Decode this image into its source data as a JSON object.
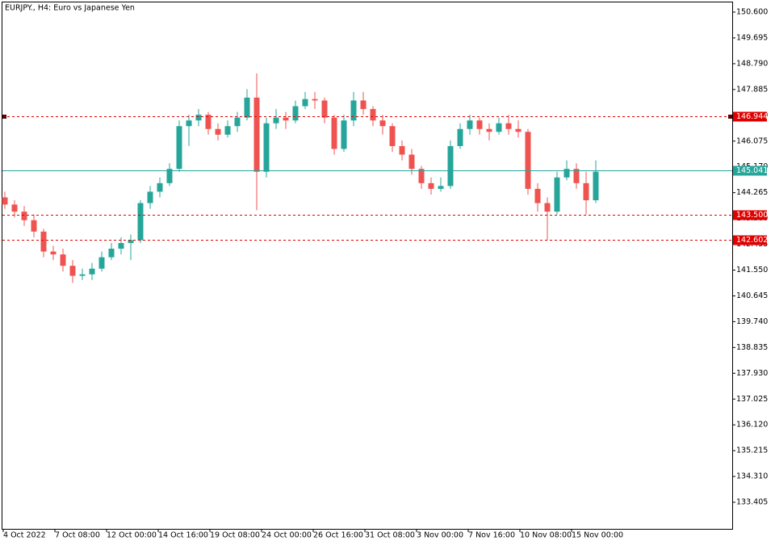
{
  "chart_data": {
    "type": "candlestick",
    "title": "EURJPY., H4:  Euro vs Japanese Yen",
    "up_color": "#26a69a",
    "down_color": "#ef5350",
    "ylim": [
      132.472,
      150.94
    ],
    "yticks": [
      {
        "value": 150.6,
        "label": "150.600"
      },
      149.695,
      {
        "value": 148.79,
        "label": "148.790"
      },
      147.885,
      {
        "value": 146.98,
        "label": "146.980"
      },
      146.075,
      {
        "value": 145.17,
        "label": "145.170"
      },
      144.265,
      {
        "value": 143.36,
        "label": "143.360"
      },
      142.455,
      {
        "value": 141.55,
        "label": "141.550"
      },
      140.645,
      {
        "value": 139.74,
        "label": "139.740"
      },
      138.835,
      {
        "value": 137.93,
        "label": "137.930"
      },
      137.025,
      {
        "value": 136.12,
        "label": "136.120"
      },
      135.215,
      {
        "value": 134.31,
        "label": "134.310"
      },
      133.405
    ],
    "x_tick_labels": [
      "4 Oct 2022",
      "7 Oct 08:00",
      "12 Oct 00:00",
      "14 Oct 16:00",
      "19 Oct 08:00",
      "24 Oct 00:00",
      "26 Oct 16:00",
      "31 Oct 08:00",
      "3 Nov 00:00",
      "7 Nov 16:00",
      "10 Nov 08:00",
      "15 Nov 00:00"
    ],
    "levels": [
      {
        "value": 146.944,
        "color": "#e00000",
        "style": "dashed"
      },
      {
        "value": 145.041,
        "color": "#26a69a",
        "style": "solid"
      },
      {
        "value": 143.5,
        "label": "143.500",
        "color": "#e00000",
        "style": "dashed"
      },
      {
        "value": 142.602,
        "color": "#e00000",
        "style": "dashed"
      }
    ],
    "open": [
      144.1,
      143.85,
      143.6,
      143.3,
      142.9,
      142.2,
      142.1,
      141.7,
      141.35,
      141.4,
      141.6,
      142.0,
      142.3,
      142.5,
      142.6,
      143.9,
      144.3,
      144.6,
      145.1,
      146.6,
      146.8,
      147.0,
      146.5,
      146.3,
      146.6,
      146.9,
      147.6,
      145.0,
      146.7,
      146.9,
      146.8,
      147.3,
      147.55,
      147.5,
      146.9,
      145.8,
      146.8,
      147.5,
      147.2,
      146.8,
      146.6,
      145.9,
      145.6,
      145.1,
      144.6,
      144.4,
      144.5,
      145.9,
      146.5,
      146.8,
      146.5,
      146.4,
      146.7,
      146.5,
      146.4,
      144.4,
      143.9,
      143.6,
      144.8,
      145.1,
      144.6,
      144.0
    ],
    "high": [
      144.3,
      144.0,
      143.8,
      143.5,
      143.0,
      142.4,
      142.3,
      141.9,
      141.6,
      141.8,
      142.2,
      142.5,
      142.7,
      142.8,
      144.0,
      144.5,
      144.8,
      145.3,
      146.8,
      147.0,
      147.2,
      147.1,
      146.7,
      146.8,
      147.1,
      147.9,
      148.45,
      146.9,
      147.2,
      147.1,
      147.5,
      147.8,
      147.8,
      147.6,
      147.0,
      147.0,
      147.8,
      147.8,
      147.3,
      147.0,
      146.7,
      146.1,
      145.8,
      145.2,
      144.8,
      144.8,
      146.1,
      146.7,
      147.0,
      146.9,
      146.7,
      146.9,
      147.0,
      146.8,
      146.5,
      144.6,
      144.1,
      145.0,
      145.4,
      145.3,
      145.0,
      145.4
    ],
    "low": [
      143.7,
      143.4,
      143.1,
      142.7,
      142.0,
      141.9,
      141.5,
      141.1,
      141.2,
      141.2,
      141.5,
      141.9,
      142.1,
      141.9,
      142.5,
      143.7,
      144.1,
      144.5,
      145.0,
      145.9,
      146.6,
      146.3,
      146.1,
      146.2,
      146.4,
      146.8,
      143.65,
      144.8,
      146.5,
      146.5,
      146.7,
      147.2,
      147.2,
      146.7,
      145.6,
      145.7,
      146.6,
      147.0,
      146.6,
      146.3,
      145.7,
      145.4,
      144.9,
      144.4,
      144.2,
      144.3,
      144.4,
      145.8,
      146.3,
      146.3,
      146.1,
      146.3,
      146.3,
      146.2,
      144.2,
      143.6,
      142.6,
      143.5,
      144.7,
      144.4,
      143.5,
      143.9
    ],
    "close": [
      143.85,
      143.6,
      143.3,
      142.9,
      142.2,
      142.1,
      141.7,
      141.35,
      141.4,
      141.6,
      142.0,
      142.3,
      142.5,
      142.6,
      143.9,
      144.3,
      144.6,
      145.1,
      146.6,
      146.8,
      147.0,
      146.5,
      146.3,
      146.6,
      146.9,
      147.6,
      145.0,
      146.7,
      146.9,
      146.8,
      147.3,
      147.55,
      147.5,
      146.9,
      145.8,
      146.8,
      147.5,
      147.2,
      146.8,
      146.6,
      145.9,
      145.6,
      145.1,
      144.6,
      144.4,
      144.5,
      145.9,
      146.5,
      146.8,
      146.5,
      146.4,
      146.7,
      146.5,
      146.4,
      144.4,
      143.9,
      143.6,
      144.8,
      145.1,
      144.6,
      144.0,
      145.0
    ]
  }
}
